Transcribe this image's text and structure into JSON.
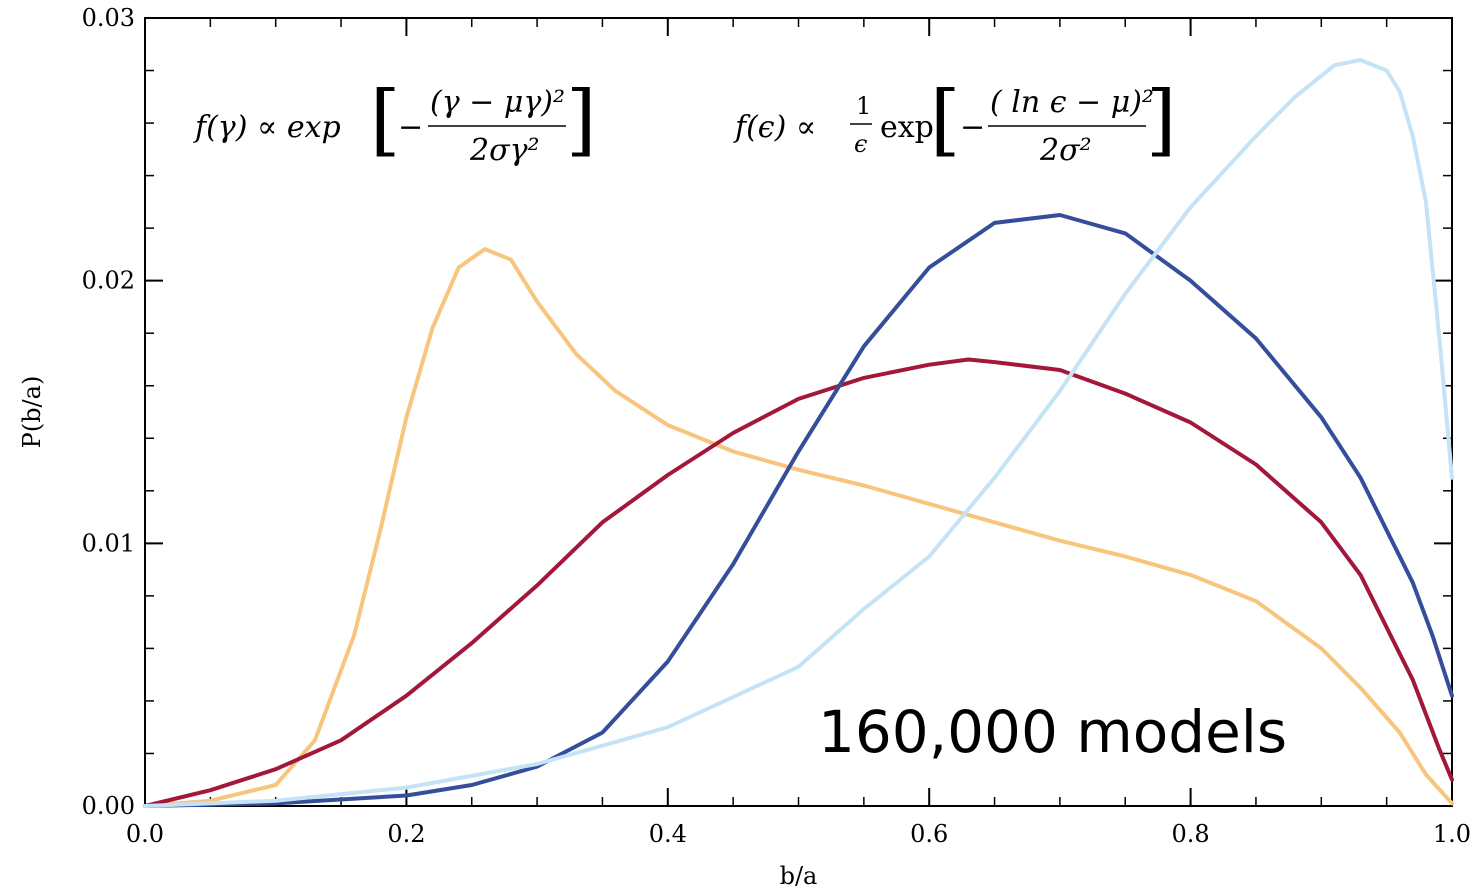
{
  "chart_data": {
    "type": "line",
    "title": "",
    "xlabel": "b/a",
    "ylabel": "P(b/a)",
    "xlim": [
      0.0,
      1.0
    ],
    "ylim": [
      0.0,
      0.03
    ],
    "x_ticks": [
      "0.0",
      "0.2",
      "0.4",
      "0.6",
      "0.8",
      "1.0"
    ],
    "y_ticks": [
      "0.00",
      "0.01",
      "0.02",
      "0.03"
    ],
    "x_tick_values": [
      0.0,
      0.2,
      0.4,
      0.6,
      0.8,
      1.0
    ],
    "y_tick_values": [
      0.0,
      0.01,
      0.02,
      0.03
    ],
    "grid": false,
    "annotations": {
      "models_count": "160,000 models",
      "formula_gamma": {
        "lhs": "f(γ) ∝ exp",
        "numerator": "(γ − μγ)²",
        "denominator": "2σγ²"
      },
      "formula_epsilon": {
        "lhs": "f(ϵ) ∝",
        "prefactor_num": "1",
        "prefactor_den": "ϵ",
        "exp": "exp",
        "numerator": "( ln ϵ − μ)²",
        "denominator": "2σ²"
      }
    },
    "series": [
      {
        "color": "#f7c57e",
        "x": [
          0.0,
          0.05,
          0.1,
          0.13,
          0.16,
          0.18,
          0.2,
          0.22,
          0.24,
          0.26,
          0.28,
          0.3,
          0.33,
          0.36,
          0.4,
          0.45,
          0.5,
          0.55,
          0.6,
          0.65,
          0.7,
          0.75,
          0.8,
          0.85,
          0.9,
          0.93,
          0.96,
          0.98,
          1.0
        ],
        "y": [
          0.0,
          0.0002,
          0.0008,
          0.0025,
          0.0065,
          0.0105,
          0.0148,
          0.0182,
          0.0205,
          0.0212,
          0.0208,
          0.0192,
          0.0172,
          0.0158,
          0.0145,
          0.0135,
          0.0128,
          0.0122,
          0.0115,
          0.0108,
          0.0101,
          0.0095,
          0.0088,
          0.0078,
          0.006,
          0.0045,
          0.0028,
          0.0012,
          0.0001
        ]
      },
      {
        "color": "#a3183a",
        "x": [
          0.0,
          0.05,
          0.1,
          0.15,
          0.2,
          0.25,
          0.3,
          0.35,
          0.4,
          0.45,
          0.5,
          0.55,
          0.6,
          0.63,
          0.65,
          0.7,
          0.75,
          0.8,
          0.85,
          0.9,
          0.93,
          0.95,
          0.97,
          0.99,
          1.0
        ],
        "y": [
          0.0,
          0.0006,
          0.0014,
          0.0025,
          0.0042,
          0.0062,
          0.0084,
          0.0108,
          0.0126,
          0.0142,
          0.0155,
          0.0163,
          0.0168,
          0.017,
          0.0169,
          0.0166,
          0.0157,
          0.0146,
          0.013,
          0.0108,
          0.0088,
          0.0068,
          0.0048,
          0.0022,
          0.001
        ]
      },
      {
        "color": "#344e9b",
        "x": [
          0.0,
          0.1,
          0.2,
          0.25,
          0.3,
          0.35,
          0.4,
          0.45,
          0.5,
          0.55,
          0.6,
          0.65,
          0.7,
          0.75,
          0.8,
          0.85,
          0.9,
          0.93,
          0.95,
          0.97,
          0.985,
          1.0
        ],
        "y": [
          0.0,
          0.0001,
          0.0004,
          0.0008,
          0.0015,
          0.0028,
          0.0055,
          0.0092,
          0.0135,
          0.0175,
          0.0205,
          0.0222,
          0.0225,
          0.0218,
          0.02,
          0.0178,
          0.0148,
          0.0125,
          0.0105,
          0.0085,
          0.0065,
          0.0042
        ]
      },
      {
        "color": "#c5e3f6",
        "x": [
          0.0,
          0.1,
          0.2,
          0.3,
          0.4,
          0.5,
          0.55,
          0.6,
          0.65,
          0.7,
          0.75,
          0.8,
          0.85,
          0.88,
          0.91,
          0.93,
          0.95,
          0.96,
          0.97,
          0.98,
          0.99,
          1.0
        ],
        "y": [
          0.0,
          0.0002,
          0.0007,
          0.0016,
          0.003,
          0.0053,
          0.0075,
          0.0095,
          0.0125,
          0.0158,
          0.0195,
          0.0228,
          0.0255,
          0.027,
          0.0282,
          0.0284,
          0.028,
          0.0272,
          0.0255,
          0.023,
          0.018,
          0.0125
        ]
      }
    ]
  }
}
